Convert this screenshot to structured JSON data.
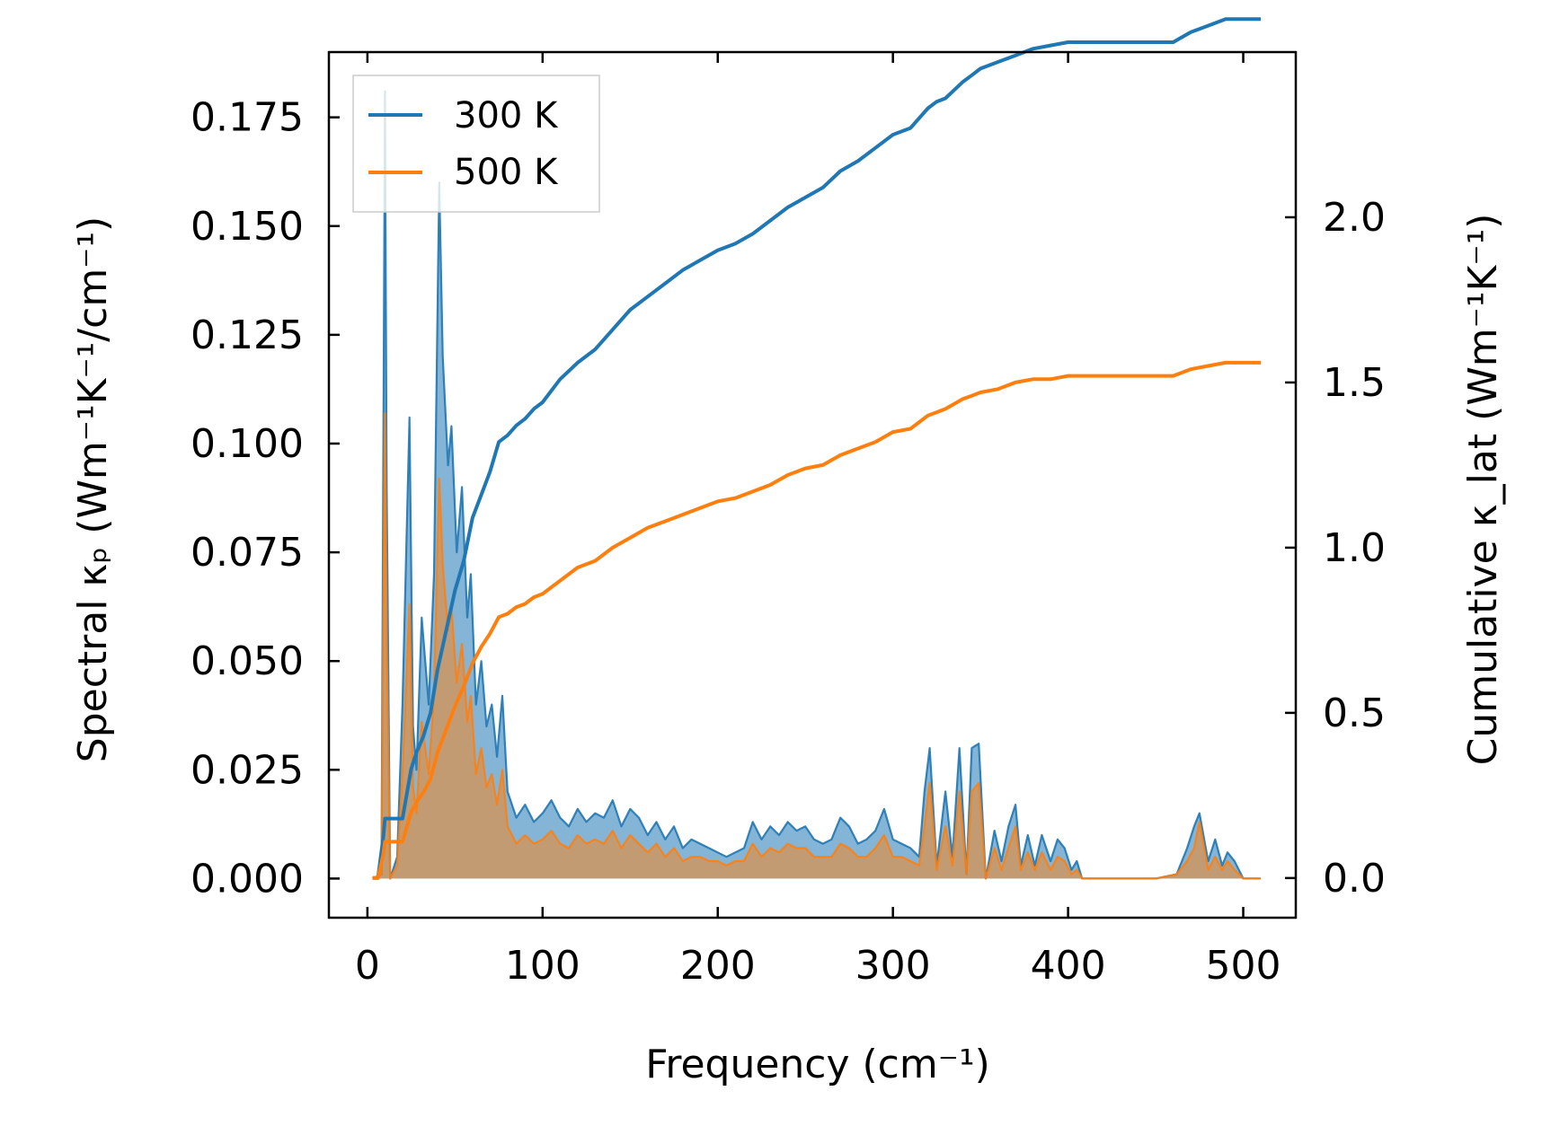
{
  "chart_data": {
    "type": "line",
    "title": "",
    "xlabel": "Frequency (cm⁻¹)",
    "ylabel_left": "Spectral κₚ (Wm⁻¹K⁻¹/cm⁻¹)",
    "ylabel_right": "Cumulative κ_lat (Wm⁻¹K⁻¹)",
    "xlim": [
      -22,
      530
    ],
    "ylim_left": [
      -0.009,
      0.19
    ],
    "ylim_right": [
      -0.12,
      2.5
    ],
    "x_ticks": [
      0,
      100,
      200,
      300,
      400,
      500
    ],
    "x_tick_labels": [
      "0",
      "100",
      "200",
      "300",
      "400",
      "500"
    ],
    "y_left_ticks": [
      0.0,
      0.025,
      0.05,
      0.075,
      0.1,
      0.125,
      0.15,
      0.175
    ],
    "y_left_tick_labels": [
      "0.000",
      "0.025",
      "0.050",
      "0.075",
      "0.100",
      "0.125",
      "0.150",
      "0.175"
    ],
    "y_right_ticks": [
      0.0,
      0.5,
      1.0,
      1.5,
      2.0
    ],
    "y_right_tick_labels": [
      "0.0",
      "0.5",
      "1.0",
      "1.5",
      "2.0"
    ],
    "legend": {
      "position": "top-left",
      "entries": [
        "300 K",
        "500 K"
      ]
    },
    "colors": {
      "300 K": "#1f77b4",
      "500 K": "#ff7f0e",
      "overlap_fill": "#c69a6e"
    },
    "spectral_series": [
      {
        "name": "300 K",
        "axis": "left",
        "x": [
          3,
          8,
          10,
          11,
          13,
          17,
          20,
          24,
          26,
          28,
          31,
          35,
          38,
          41,
          43,
          46,
          48,
          51,
          54,
          57,
          59,
          62,
          65,
          68,
          71,
          74,
          77,
          80,
          85,
          90,
          95,
          100,
          105,
          110,
          115,
          120,
          125,
          130,
          135,
          140,
          145,
          150,
          155,
          160,
          165,
          170,
          175,
          180,
          185,
          190,
          195,
          200,
          205,
          210,
          215,
          220,
          225,
          230,
          235,
          240,
          245,
          250,
          255,
          260,
          265,
          270,
          275,
          280,
          285,
          290,
          295,
          300,
          305,
          310,
          315,
          318,
          321,
          325,
          330,
          334,
          338,
          342,
          345,
          349,
          353,
          358,
          362,
          366,
          370,
          373,
          377,
          381,
          385,
          390,
          394,
          398,
          402,
          405,
          408,
          415,
          430,
          450,
          462,
          468,
          472,
          475,
          480,
          484,
          488,
          491,
          495,
          500,
          505,
          510
        ],
        "values": [
          0.0,
          0.001,
          0.181,
          0.09,
          0.0,
          0.005,
          0.04,
          0.106,
          0.035,
          0.025,
          0.06,
          0.04,
          0.07,
          0.16,
          0.12,
          0.095,
          0.104,
          0.075,
          0.09,
          0.06,
          0.07,
          0.04,
          0.05,
          0.035,
          0.04,
          0.028,
          0.042,
          0.02,
          0.014,
          0.017,
          0.013,
          0.015,
          0.018,
          0.014,
          0.012,
          0.016,
          0.013,
          0.015,
          0.014,
          0.018,
          0.012,
          0.016,
          0.014,
          0.01,
          0.013,
          0.009,
          0.012,
          0.007,
          0.009,
          0.008,
          0.007,
          0.006,
          0.005,
          0.006,
          0.007,
          0.013,
          0.009,
          0.012,
          0.01,
          0.013,
          0.011,
          0.012,
          0.009,
          0.008,
          0.009,
          0.014,
          0.012,
          0.008,
          0.009,
          0.011,
          0.016,
          0.009,
          0.008,
          0.007,
          0.005,
          0.02,
          0.03,
          0.003,
          0.02,
          0.005,
          0.03,
          0.001,
          0.03,
          0.031,
          0.0,
          0.011,
          0.004,
          0.012,
          0.017,
          0.003,
          0.01,
          0.003,
          0.01,
          0.004,
          0.009,
          0.007,
          0.002,
          0.004,
          0.0,
          0.0,
          0.0,
          0.0,
          0.001,
          0.007,
          0.012,
          0.015,
          0.004,
          0.009,
          0.003,
          0.006,
          0.004,
          0.0,
          0.0,
          0.0
        ]
      },
      {
        "name": "500 K",
        "axis": "left",
        "x": [
          3,
          8,
          10,
          11,
          13,
          17,
          20,
          24,
          26,
          28,
          31,
          35,
          38,
          41,
          43,
          46,
          48,
          51,
          54,
          57,
          59,
          62,
          65,
          68,
          71,
          74,
          77,
          80,
          85,
          90,
          95,
          100,
          105,
          110,
          115,
          120,
          125,
          130,
          135,
          140,
          145,
          150,
          155,
          160,
          165,
          170,
          175,
          180,
          185,
          190,
          195,
          200,
          205,
          210,
          215,
          220,
          225,
          230,
          235,
          240,
          245,
          250,
          255,
          260,
          265,
          270,
          275,
          280,
          285,
          290,
          295,
          300,
          305,
          310,
          315,
          318,
          321,
          325,
          330,
          334,
          338,
          342,
          345,
          349,
          353,
          358,
          362,
          366,
          370,
          373,
          377,
          381,
          385,
          390,
          394,
          398,
          402,
          405,
          408,
          415,
          430,
          450,
          462,
          468,
          472,
          475,
          480,
          484,
          488,
          491,
          495,
          500,
          505,
          510
        ],
        "values": [
          0.0,
          0.001,
          0.107,
          0.055,
          0.0,
          0.003,
          0.024,
          0.063,
          0.021,
          0.015,
          0.036,
          0.024,
          0.042,
          0.092,
          0.072,
          0.057,
          0.062,
          0.045,
          0.054,
          0.036,
          0.042,
          0.024,
          0.03,
          0.021,
          0.024,
          0.017,
          0.025,
          0.012,
          0.008,
          0.01,
          0.008,
          0.009,
          0.011,
          0.008,
          0.007,
          0.01,
          0.008,
          0.009,
          0.008,
          0.011,
          0.007,
          0.01,
          0.008,
          0.006,
          0.008,
          0.005,
          0.007,
          0.004,
          0.005,
          0.005,
          0.004,
          0.004,
          0.003,
          0.004,
          0.004,
          0.008,
          0.005,
          0.007,
          0.006,
          0.008,
          0.007,
          0.007,
          0.005,
          0.005,
          0.005,
          0.008,
          0.007,
          0.005,
          0.005,
          0.007,
          0.01,
          0.005,
          0.005,
          0.004,
          0.003,
          0.012,
          0.022,
          0.002,
          0.012,
          0.003,
          0.02,
          0.001,
          0.02,
          0.022,
          0.0,
          0.007,
          0.002,
          0.007,
          0.012,
          0.002,
          0.006,
          0.002,
          0.006,
          0.002,
          0.005,
          0.004,
          0.001,
          0.002,
          0.0,
          0.0,
          0.0,
          0.0,
          0.001,
          0.004,
          0.007,
          0.013,
          0.002,
          0.005,
          0.002,
          0.004,
          0.002,
          0.0,
          0.0,
          0.0
        ]
      }
    ],
    "cumulative_series": [
      {
        "name": "300 K",
        "axis": "right",
        "x": [
          3,
          6,
          9,
          10,
          11,
          14,
          18,
          20,
          25,
          28,
          32,
          36,
          40,
          45,
          50,
          55,
          60,
          65,
          70,
          75,
          80,
          85,
          90,
          95,
          100,
          110,
          120,
          130,
          140,
          150,
          160,
          170,
          180,
          190,
          200,
          210,
          220,
          230,
          240,
          250,
          260,
          270,
          280,
          290,
          300,
          310,
          315,
          320,
          325,
          330,
          340,
          345,
          350,
          360,
          370,
          380,
          390,
          400,
          410,
          420,
          440,
          460,
          470,
          480,
          490,
          500,
          510
        ],
        "values": [
          0.0,
          0.0,
          0.12,
          0.18,
          0.18,
          0.18,
          0.18,
          0.18,
          0.33,
          0.38,
          0.43,
          0.5,
          0.63,
          0.75,
          0.87,
          0.96,
          1.09,
          1.16,
          1.23,
          1.32,
          1.34,
          1.37,
          1.39,
          1.42,
          1.44,
          1.51,
          1.56,
          1.6,
          1.66,
          1.72,
          1.76,
          1.8,
          1.84,
          1.87,
          1.9,
          1.92,
          1.95,
          1.99,
          2.03,
          2.06,
          2.09,
          2.14,
          2.17,
          2.21,
          2.25,
          2.27,
          2.3,
          2.33,
          2.35,
          2.36,
          2.41,
          2.43,
          2.45,
          2.47,
          2.49,
          2.51,
          2.52,
          2.53,
          2.53,
          2.53,
          2.53,
          2.53,
          2.56,
          2.58,
          2.6,
          2.6,
          2.6
        ]
      },
      {
        "name": "500 K",
        "axis": "right",
        "x": [
          3,
          6,
          9,
          10,
          11,
          14,
          18,
          20,
          25,
          28,
          32,
          36,
          40,
          45,
          50,
          55,
          60,
          65,
          70,
          75,
          80,
          85,
          90,
          95,
          100,
          110,
          120,
          130,
          140,
          150,
          160,
          170,
          180,
          190,
          200,
          210,
          220,
          230,
          240,
          250,
          260,
          270,
          280,
          290,
          300,
          310,
          315,
          320,
          325,
          330,
          340,
          345,
          350,
          360,
          370,
          380,
          390,
          400,
          410,
          420,
          440,
          460,
          470,
          480,
          490,
          500,
          510
        ],
        "values": [
          0.0,
          0.0,
          0.07,
          0.11,
          0.11,
          0.11,
          0.11,
          0.11,
          0.2,
          0.23,
          0.26,
          0.3,
          0.38,
          0.45,
          0.52,
          0.58,
          0.65,
          0.7,
          0.74,
          0.79,
          0.8,
          0.82,
          0.83,
          0.85,
          0.86,
          0.9,
          0.94,
          0.96,
          1.0,
          1.03,
          1.06,
          1.08,
          1.1,
          1.12,
          1.14,
          1.15,
          1.17,
          1.19,
          1.22,
          1.24,
          1.25,
          1.28,
          1.3,
          1.32,
          1.35,
          1.36,
          1.38,
          1.4,
          1.41,
          1.42,
          1.45,
          1.46,
          1.47,
          1.48,
          1.5,
          1.51,
          1.51,
          1.52,
          1.52,
          1.52,
          1.52,
          1.52,
          1.54,
          1.55,
          1.56,
          1.56,
          1.56
        ]
      }
    ]
  }
}
